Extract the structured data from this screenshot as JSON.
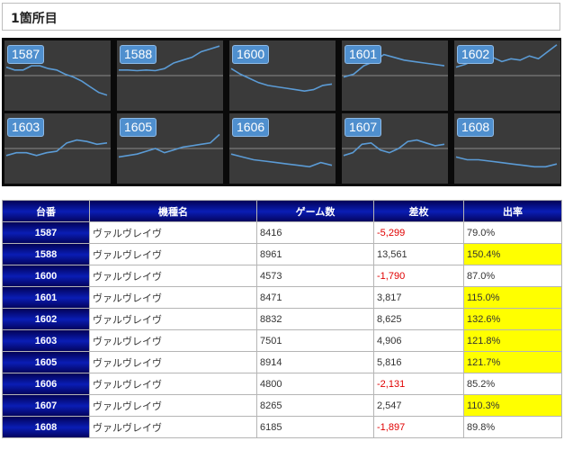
{
  "title": "1箇所目",
  "colors": {
    "line": "#5b9bd5",
    "panel_bg": "#3a3a3a",
    "frame": "#0a0a0a",
    "header": "#0a1db5",
    "negative": "#e00000",
    "highlight": "#ffff00"
  },
  "panels": [
    {
      "label": "1587",
      "values": [
        62,
        58,
        58,
        64,
        64,
        60,
        58,
        52,
        48,
        42,
        34,
        26,
        22
      ]
    },
    {
      "label": "1588",
      "values": [
        58,
        58,
        57,
        58,
        57,
        60,
        68,
        72,
        76,
        84,
        88,
        92
      ]
    },
    {
      "label": "1600",
      "values": [
        60,
        52,
        46,
        40,
        36,
        34,
        32,
        30,
        28,
        30,
        36,
        38
      ]
    },
    {
      "label": "1601",
      "values": [
        48,
        52,
        64,
        70,
        80,
        76,
        72,
        70,
        68,
        66,
        64
      ]
    },
    {
      "label": "1602",
      "values": [
        62,
        66,
        72,
        74,
        76,
        70,
        74,
        72,
        78,
        74,
        84,
        94
      ]
    },
    {
      "label": "1603",
      "values": [
        40,
        44,
        44,
        40,
        44,
        46,
        58,
        62,
        60,
        56,
        58
      ]
    },
    {
      "label": "1605",
      "values": [
        38,
        40,
        42,
        46,
        50,
        44,
        48,
        52,
        54,
        56,
        58,
        70
      ]
    },
    {
      "label": "1606",
      "values": [
        42,
        38,
        34,
        32,
        30,
        28,
        26,
        24,
        30,
        26
      ]
    },
    {
      "label": "1607",
      "values": [
        40,
        44,
        56,
        58,
        48,
        44,
        50,
        60,
        62,
        58,
        54,
        56
      ]
    },
    {
      "label": "1608",
      "values": [
        38,
        34,
        34,
        32,
        30,
        28,
        26,
        24,
        24,
        28
      ]
    }
  ],
  "table": {
    "headers": [
      "台番",
      "機種名",
      "ゲーム数",
      "差枚",
      "出率"
    ],
    "rows": [
      {
        "id": "1587",
        "name": "ヴァルヴレイヴ",
        "games": "8416",
        "diff": "-5,299",
        "rate": "79.0%",
        "negative": true,
        "highlight": false
      },
      {
        "id": "1588",
        "name": "ヴァルヴレイヴ",
        "games": "8961",
        "diff": "13,561",
        "rate": "150.4%",
        "negative": false,
        "highlight": true
      },
      {
        "id": "1600",
        "name": "ヴァルヴレイヴ",
        "games": "4573",
        "diff": "-1,790",
        "rate": "87.0%",
        "negative": true,
        "highlight": false
      },
      {
        "id": "1601",
        "name": "ヴァルヴレイヴ",
        "games": "8471",
        "diff": "3,817",
        "rate": "115.0%",
        "negative": false,
        "highlight": true
      },
      {
        "id": "1602",
        "name": "ヴァルヴレイヴ",
        "games": "8832",
        "diff": "8,625",
        "rate": "132.6%",
        "negative": false,
        "highlight": true
      },
      {
        "id": "1603",
        "name": "ヴァルヴレイヴ",
        "games": "7501",
        "diff": "4,906",
        "rate": "121.8%",
        "negative": false,
        "highlight": true
      },
      {
        "id": "1605",
        "name": "ヴァルヴレイヴ",
        "games": "8914",
        "diff": "5,816",
        "rate": "121.7%",
        "negative": false,
        "highlight": true
      },
      {
        "id": "1606",
        "name": "ヴァルヴレイヴ",
        "games": "4800",
        "diff": "-2,131",
        "rate": "85.2%",
        "negative": true,
        "highlight": false
      },
      {
        "id": "1607",
        "name": "ヴァルヴレイヴ",
        "games": "8265",
        "diff": "2,547",
        "rate": "110.3%",
        "negative": false,
        "highlight": true
      },
      {
        "id": "1608",
        "name": "ヴァルヴレイヴ",
        "games": "6185",
        "diff": "-1,897",
        "rate": "89.8%",
        "negative": true,
        "highlight": false
      }
    ]
  }
}
